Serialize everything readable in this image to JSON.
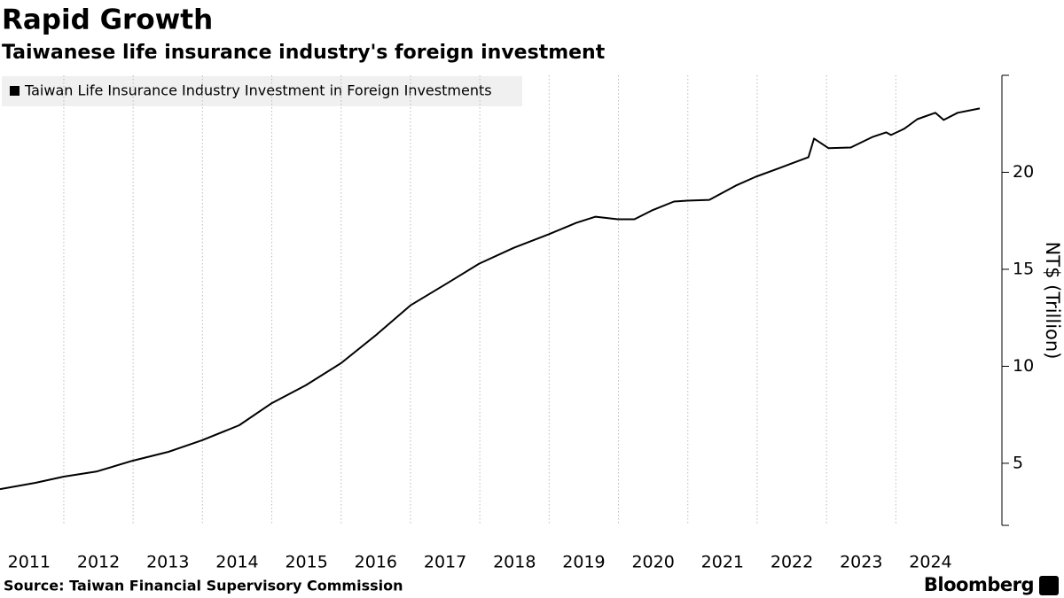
{
  "chart_data": {
    "type": "line",
    "title": "Rapid Growth",
    "subtitle": "Taiwanese life insurance industry's foreign investment",
    "y_label": "NT$ (Trillion)",
    "source": "Source: Taiwan Financial Supervisory Commission",
    "brand": "Bloomberg",
    "legend_position": "upper left",
    "grid": true,
    "x": [
      2011.08,
      2011.59,
      2012.0,
      2012.48,
      2012.99,
      2013.51,
      2013.99,
      2014.53,
      2015.0,
      2015.49,
      2016.0,
      2016.51,
      2017.0,
      2017.53,
      2017.99,
      2018.49,
      2018.99,
      2019.39,
      2019.67,
      2019.99,
      2020.23,
      2020.48,
      2020.8,
      2020.99,
      2021.31,
      2021.69,
      2021.98,
      2022.33,
      2022.74,
      2022.82,
      2023.03,
      2023.35,
      2023.67,
      2023.86,
      2023.93,
      2024.12,
      2024.31,
      2024.57,
      2024.69,
      2024.89,
      2025.21
    ],
    "series": [
      {
        "name": "Taiwan Life Insurance Industry Investment in Foreign Investments",
        "color": "#000000",
        "values": [
          3.67,
          3.99,
          4.31,
          4.58,
          5.13,
          5.59,
          6.18,
          6.96,
          8.1,
          9.02,
          10.16,
          11.63,
          13.14,
          14.28,
          15.29,
          16.11,
          16.8,
          17.39,
          17.71,
          17.58,
          17.58,
          18.03,
          18.49,
          18.54,
          18.58,
          19.31,
          19.77,
          20.23,
          20.78,
          21.74,
          21.24,
          21.28,
          21.83,
          22.06,
          21.92,
          22.24,
          22.74,
          23.07,
          22.7,
          23.07,
          23.29
        ]
      }
    ],
    "xlim": [
      2011.08,
      2025.53
    ],
    "xticks": [
      2011,
      2012,
      2013,
      2014,
      2015,
      2016,
      2017,
      2018,
      2019,
      2020,
      2021,
      2022,
      2023,
      2024
    ],
    "ylim": [
      1.8,
      25.0
    ],
    "yticks": [
      5,
      10,
      15,
      20
    ]
  }
}
